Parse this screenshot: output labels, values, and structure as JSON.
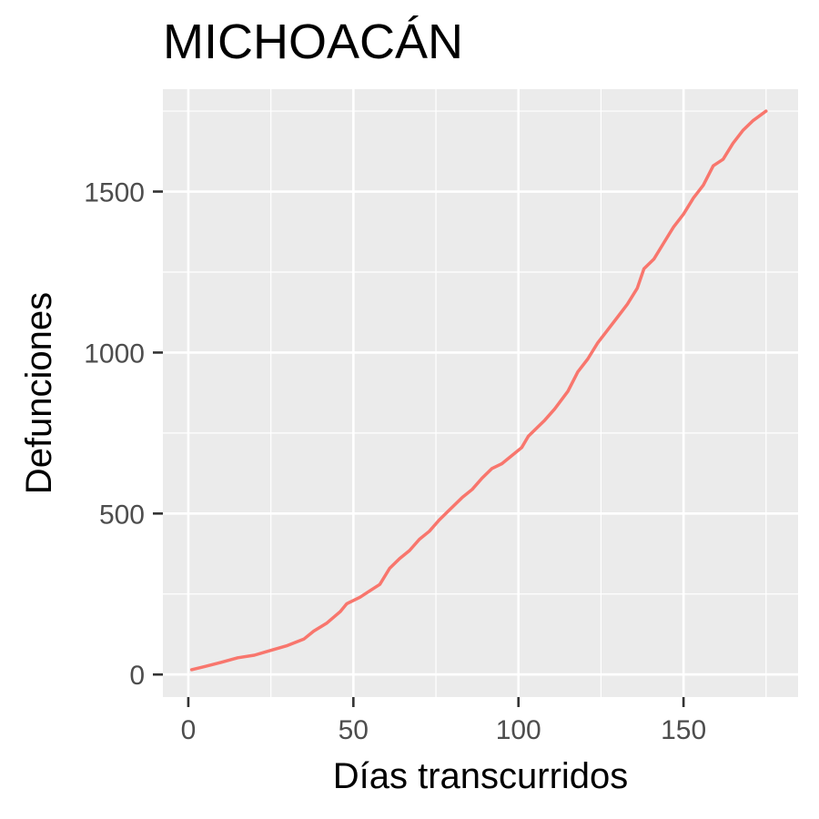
{
  "chart_data": {
    "type": "line",
    "title": "MICHOACÁN",
    "xlabel": "Días transcurridos",
    "ylabel": "Defunciones",
    "xlim": [
      -7.7,
      184.7
    ],
    "ylim": [
      -70,
      1818
    ],
    "x_ticks": [
      0,
      50,
      100,
      150
    ],
    "x_tick_labels": [
      "0",
      "50",
      "100",
      "150"
    ],
    "y_ticks": [
      0,
      500,
      1000,
      1500
    ],
    "y_tick_labels": [
      "0",
      "500",
      "1000",
      "1500"
    ],
    "grid": true,
    "legend": "none",
    "series": [
      {
        "color": "#f8766d",
        "x": [
          1,
          5,
          10,
          15,
          20,
          25,
          30,
          35,
          38,
          42,
          46,
          48,
          52,
          55,
          58,
          61,
          64,
          67,
          70,
          73,
          76,
          79,
          83,
          86,
          89,
          92,
          95,
          98,
          101,
          103,
          105,
          108,
          111,
          115,
          118,
          121,
          124,
          127,
          130,
          133,
          136,
          138,
          141,
          144,
          147,
          150,
          153,
          156,
          159,
          162,
          165,
          168,
          171,
          175
        ],
        "y": [
          15,
          25,
          38,
          52,
          60,
          75,
          90,
          110,
          135,
          160,
          195,
          220,
          240,
          260,
          280,
          330,
          360,
          385,
          420,
          445,
          480,
          510,
          550,
          575,
          610,
          640,
          655,
          680,
          705,
          740,
          760,
          790,
          825,
          880,
          940,
          980,
          1030,
          1070,
          1110,
          1150,
          1200,
          1260,
          1290,
          1340,
          1390,
          1430,
          1480,
          1520,
          1580,
          1600,
          1650,
          1690,
          1720,
          1750
        ]
      }
    ]
  }
}
